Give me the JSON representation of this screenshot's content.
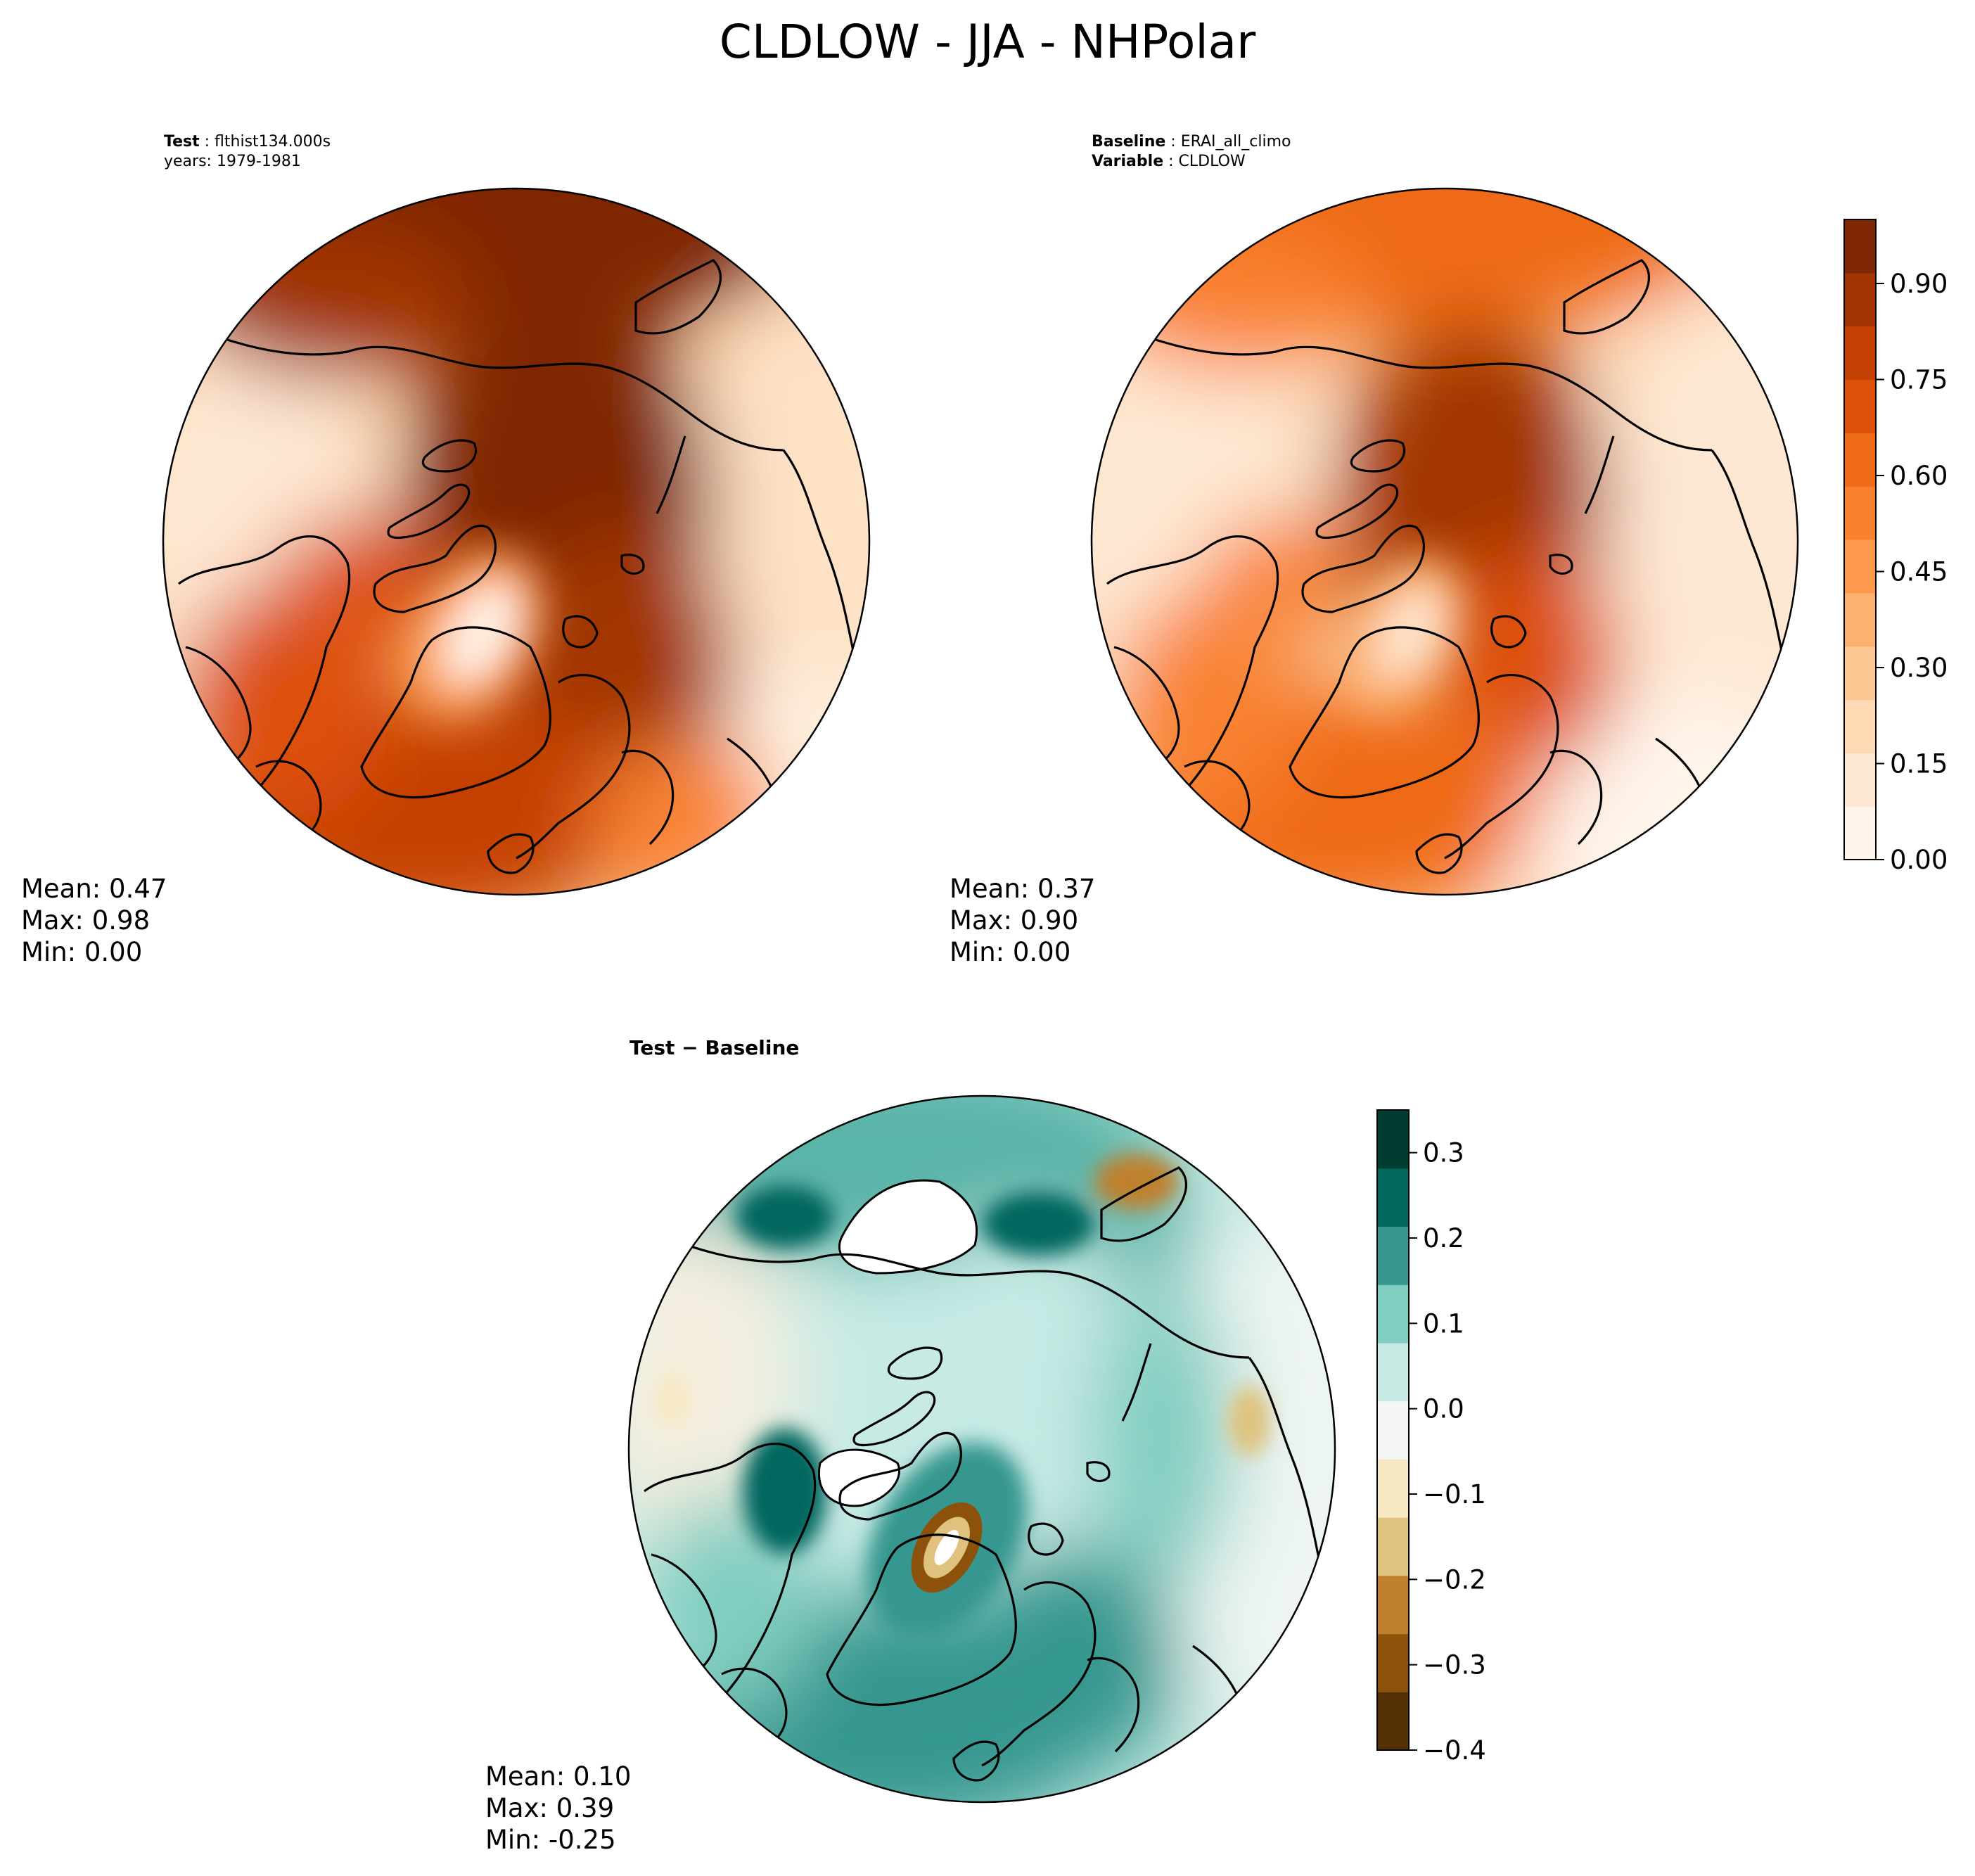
{
  "figure": {
    "title": "CLDLOW - JJA - NHPolar"
  },
  "panels": {
    "test": {
      "label_bold": "Test",
      "label_value": "flthist134.000s",
      "line2": "years: 1979-1981",
      "stats": {
        "mean": "Mean:  0.47",
        "max": "Max:  0.98",
        "min": "Min:  0.00"
      }
    },
    "baseline": {
      "label_bold": "Baseline",
      "label_value": "ERAI_all_climo",
      "line2_bold": "Variable",
      "line2_value": "CLDLOW",
      "stats": {
        "mean": "Mean:  0.37",
        "max": "Max:  0.90",
        "min": "Min:  0.00"
      }
    },
    "diff": {
      "label_bold": "Test − Baseline",
      "stats": {
        "mean": "Mean:  0.10",
        "max": "Max:  0.39",
        "min": "Min: -0.25"
      }
    }
  },
  "colors": {
    "oranges": [
      "#fff5eb",
      "#fee8d3",
      "#fdd9b4",
      "#fdc794",
      "#fdb171",
      "#fd9a4e",
      "#f98230",
      "#ef6a15",
      "#dd5008",
      "#c44103",
      "#a23403",
      "#7f2704"
    ],
    "brbg": [
      "#543005",
      "#8c510a",
      "#bf812d",
      "#dfc27d",
      "#f6e8c3",
      "#f5f5f5",
      "#c7eae5",
      "#80cdc1",
      "#35978f",
      "#01665e",
      "#003c30"
    ]
  },
  "chart_data": [
    {
      "type": "heatmap",
      "name": "Test",
      "projection": "NHPolar",
      "variable": "CLDLOW",
      "season": "JJA",
      "mean": 0.47,
      "max": 0.98,
      "min": 0.0
    },
    {
      "type": "heatmap",
      "name": "Baseline",
      "projection": "NHPolar",
      "variable": "CLDLOW",
      "season": "JJA",
      "mean": 0.37,
      "max": 0.9,
      "min": 0.0,
      "colorbar": {
        "range": [
          0.0,
          1.0
        ],
        "ticks": [
          "0.00",
          "0.15",
          "0.30",
          "0.45",
          "0.60",
          "0.75",
          "0.90"
        ],
        "tick_values": [
          0.0,
          0.15,
          0.3,
          0.45,
          0.6,
          0.75,
          0.9
        ]
      }
    },
    {
      "type": "heatmap",
      "name": "Test - Baseline",
      "projection": "NHPolar",
      "mean": 0.1,
      "max": 0.39,
      "min": -0.25,
      "colorbar": {
        "range": [
          -0.4,
          0.35
        ],
        "ticks": [
          "0.3",
          "0.2",
          "0.1",
          "0.0",
          "−0.1",
          "−0.2",
          "−0.3",
          "−0.4"
        ],
        "tick_values": [
          0.3,
          0.2,
          0.1,
          0.0,
          -0.1,
          -0.2,
          -0.3,
          -0.4
        ]
      }
    }
  ]
}
